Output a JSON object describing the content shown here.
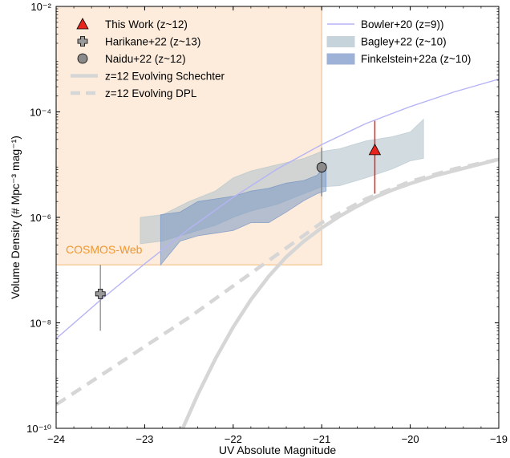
{
  "chart_data": {
    "type": "scatter",
    "xlabel": "UV Absolute Magnitude",
    "ylabel": "Volume Density (# Mpc⁻³ mag⁻¹)",
    "xlim": [
      -24,
      -19
    ],
    "ylim_log10": [
      -10,
      -2
    ],
    "yscale": "log",
    "x_ticks": [
      -24,
      -23,
      -22,
      -21,
      -20,
      -19
    ],
    "x_tick_labels": [
      "−24",
      "−23",
      "−22",
      "−21",
      "−20",
      "−19"
    ],
    "y_ticks_log10": [
      -10,
      -8,
      -6,
      -4,
      -2
    ],
    "y_tick_labels": [
      "10⁻¹⁰",
      "10⁻⁸",
      "10⁻⁶",
      "10⁻⁴",
      "10⁻²"
    ],
    "legend_placement": "top-left and top-right",
    "region": {
      "label": "COSMOS-Web",
      "x_range": [
        -24,
        -21
      ],
      "log10_y_range": [
        -6.9,
        -2
      ],
      "fill": "#fdecdc",
      "edge": "#f5b87a",
      "label_color": "#f0962e"
    },
    "points": [
      {
        "name": "This Work (z~12)",
        "marker": "triangle",
        "color": "#e8241c",
        "x": -20.4,
        "log10_y": -4.72,
        "log10_err": [
          -5.55,
          -4.17
        ]
      },
      {
        "name": "Harikane+22 (z~13)",
        "marker": "plus",
        "color": "#9a9a9a",
        "x": -23.5,
        "log10_y": -7.45,
        "log10_err": [
          -8.15,
          -6.9
        ]
      },
      {
        "name": "Naidu+22 (z~12)",
        "marker": "circle",
        "color": "#8a8a8a",
        "x": -21.0,
        "log10_y": -5.05,
        "log10_err": [
          -5.6,
          -4.68
        ]
      }
    ],
    "series": [
      {
        "name": "Bowler+20 (z=9))",
        "style": "line",
        "color": "#b6b4f4",
        "x": [
          -24,
          -23.5,
          -23,
          -22.5,
          -22,
          -21.5,
          -21,
          -20.5,
          -20,
          -19.5,
          -19
        ],
        "log10_y": [
          -8.3,
          -7.57,
          -6.88,
          -6.22,
          -5.62,
          -5.08,
          -4.62,
          -4.22,
          -3.9,
          -3.62,
          -3.38
        ]
      },
      {
        "name": "z=12 Evolving Schechter",
        "style": "solid-thick",
        "color": "#d6d6d6",
        "x": [
          -22.57,
          -22.4,
          -22.2,
          -22.0,
          -21.8,
          -21.6,
          -21.4,
          -21.2,
          -21.0,
          -20.8,
          -20.6,
          -20.4,
          -20.2,
          -20.0,
          -19.7,
          -19.4,
          -19.0
        ],
        "log10_y": [
          -10.0,
          -9.36,
          -8.68,
          -8.08,
          -7.56,
          -7.12,
          -6.75,
          -6.45,
          -6.2,
          -5.98,
          -5.79,
          -5.62,
          -5.48,
          -5.36,
          -5.2,
          -5.07,
          -4.9
        ]
      },
      {
        "name": "z=12 Evolving DPL",
        "style": "dashed-thick",
        "color": "#d6d6d6",
        "x": [
          -24,
          -23.5,
          -23,
          -22.5,
          -22,
          -21.5,
          -21,
          -20.5,
          -20,
          -19.5,
          -19
        ],
        "log10_y": [
          -9.55,
          -9.0,
          -8.45,
          -7.9,
          -7.3,
          -6.7,
          -6.1,
          -5.65,
          -5.32,
          -5.08,
          -4.9
        ]
      }
    ],
    "bands": [
      {
        "name": "Bagley+22 (z~10)",
        "color": "#b4c4cc",
        "opacity": 0.6,
        "x": [
          -23.05,
          -22.8,
          -22.5,
          -22.2,
          -22.0,
          -21.8,
          -21.5,
          -21.2,
          -21.0,
          -20.8,
          -20.5,
          -20.2,
          -20.0,
          -19.85
        ],
        "log10_lo": [
          -6.5,
          -6.45,
          -6.3,
          -6.15,
          -6.0,
          -5.88,
          -5.75,
          -5.55,
          -5.42,
          -5.4,
          -5.25,
          -5.08,
          -4.93,
          -4.88
        ],
        "log10_hi": [
          -6.0,
          -5.95,
          -5.7,
          -5.5,
          -5.25,
          -5.12,
          -5.0,
          -4.88,
          -4.75,
          -4.7,
          -4.55,
          -4.47,
          -4.38,
          -4.14
        ]
      },
      {
        "name": "Finkelstein+22a (z~10)",
        "color": "#6e8fc2",
        "opacity": 0.5,
        "x": [
          -22.82,
          -22.6,
          -22.4,
          -22.2,
          -22.0,
          -21.8,
          -21.6,
          -21.4,
          -21.2,
          -21.05,
          -20.95
        ],
        "log10_lo": [
          -6.9,
          -6.45,
          -6.35,
          -6.3,
          -6.25,
          -6.1,
          -6.1,
          -5.9,
          -5.68,
          -5.55,
          -5.5
        ],
        "log10_hi": [
          -5.95,
          -5.9,
          -5.7,
          -5.65,
          -5.6,
          -5.5,
          -5.45,
          -5.35,
          -5.3,
          -5.2,
          -4.98
        ]
      }
    ],
    "legend_left": [
      {
        "label": "This Work (z~12)",
        "kind": "triangle",
        "color": "#e8241c"
      },
      {
        "label": "Harikane+22 (z~13)",
        "kind": "plus",
        "color": "#9a9a9a"
      },
      {
        "label": "Naidu+22 (z~12)",
        "kind": "circle",
        "color": "#8a8a8a"
      },
      {
        "label": "z=12 Evolving Schechter",
        "kind": "solid",
        "color": "#d6d6d6"
      },
      {
        "label": "z=12 Evolving DPL",
        "kind": "dashed",
        "color": "#d6d6d6"
      }
    ],
    "legend_right": [
      {
        "label": "Bowler+20 (z=9))",
        "kind": "thin-line",
        "color": "#b6b4f4"
      },
      {
        "label": "Bagley+22 (z~10)",
        "kind": "patch",
        "color": "#c7d3da"
      },
      {
        "label": "Finkelstein+22a (z~10)",
        "kind": "patch",
        "color": "#9db2d6"
      }
    ]
  }
}
